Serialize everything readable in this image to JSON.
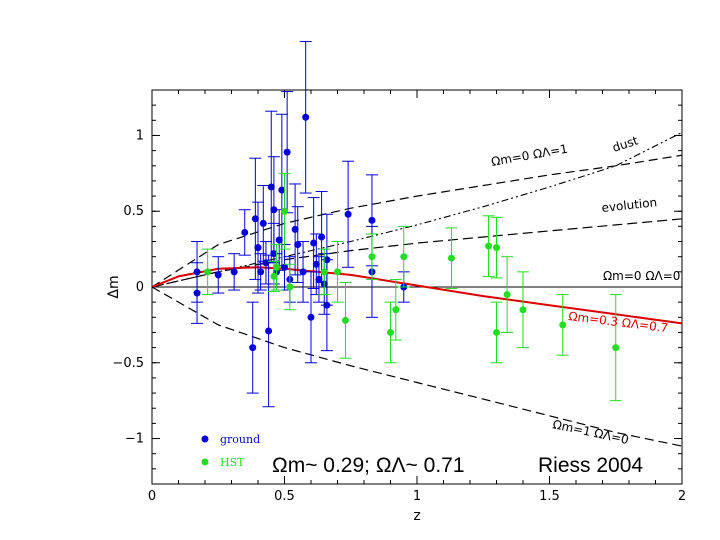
{
  "chart_data": {
    "type": "scatter",
    "xlabel": "z",
    "ylabel": "Δm",
    "xlim": [
      0,
      2
    ],
    "ylim": [
      -1.3,
      1.3
    ],
    "xticks": [
      "0",
      "0.5",
      "1",
      "1.5",
      "2"
    ],
    "yticks": [
      "1",
      "0.5",
      "0",
      "−0.5",
      "−1"
    ],
    "annotation_left": "Ωm~ 0.29; ΩΛ~ 0.71",
    "annotation_right": "Riess 2004",
    "colors": {
      "ground": "#0000dd",
      "hst": "#22dd22",
      "model": "#dd0000"
    },
    "curves": [
      {
        "label": "Ωm=0  ΩΛ=1",
        "x": [
          0,
          0.25,
          0.5,
          0.75,
          1,
          1.25,
          1.5,
          1.75,
          2
        ],
        "y": [
          0,
          0.28,
          0.42,
          0.52,
          0.6,
          0.67,
          0.74,
          0.8,
          0.87
        ]
      },
      {
        "label": "dust",
        "x": [
          0,
          0.25,
          0.5,
          0.75,
          1,
          1.25,
          1.5,
          1.75,
          2
        ],
        "y": [
          0,
          0.1,
          0.2,
          0.3,
          0.41,
          0.53,
          0.66,
          0.8,
          1.02
        ]
      },
      {
        "label": "evolution",
        "x": [
          0,
          0.25,
          0.5,
          0.75,
          1,
          1.25,
          1.5,
          1.75,
          2
        ],
        "y": [
          0,
          0.1,
          0.18,
          0.24,
          0.29,
          0.33,
          0.37,
          0.41,
          0.45
        ]
      },
      {
        "label": "Ωm=0  ΩΛ=0",
        "x": [
          0,
          2
        ],
        "y": [
          0,
          0
        ]
      },
      {
        "label": "Ωm=0.3  ΩΛ=0.7",
        "x": [
          0,
          0.1,
          0.25,
          0.4,
          0.5,
          0.75,
          1,
          1.25,
          1.5,
          1.75,
          2
        ],
        "y": [
          0,
          0.07,
          0.12,
          0.13,
          0.12,
          0.08,
          0.01,
          -0.06,
          -0.12,
          -0.18,
          -0.24
        ]
      },
      {
        "label": "Ωm=1  ΩΛ=0",
        "x": [
          0,
          0.25,
          0.5,
          0.75,
          1,
          1.25,
          1.5,
          1.75,
          2
        ],
        "y": [
          0,
          -0.25,
          -0.4,
          -0.52,
          -0.63,
          -0.74,
          -0.85,
          -0.96,
          -1.05
        ]
      }
    ],
    "series": [
      {
        "name": "ground",
        "points": [
          [
            0.17,
            0.1,
            0.2
          ],
          [
            0.17,
            -0.04,
            0.2
          ],
          [
            0.25,
            0.08,
            0.12
          ],
          [
            0.31,
            0.1,
            0.12
          ],
          [
            0.35,
            0.36,
            0.15
          ],
          [
            0.38,
            -0.4,
            0.3
          ],
          [
            0.39,
            0.45,
            0.4
          ],
          [
            0.4,
            0.26,
            0.3
          ],
          [
            0.41,
            0.1,
            0.12
          ],
          [
            0.42,
            0.42,
            0.25
          ],
          [
            0.43,
            0.16,
            0.14
          ],
          [
            0.44,
            -0.29,
            0.5
          ],
          [
            0.45,
            0.66,
            0.5
          ],
          [
            0.46,
            0.51,
            0.35
          ],
          [
            0.46,
            0.22,
            0.2
          ],
          [
            0.47,
            0.1,
            0.12
          ],
          [
            0.48,
            0.31,
            0.2
          ],
          [
            0.49,
            0.64,
            0.5
          ],
          [
            0.5,
            0.13,
            0.15
          ],
          [
            0.51,
            0.89,
            0.4
          ],
          [
            0.52,
            0.05,
            0.15
          ],
          [
            0.54,
            0.38,
            0.3
          ],
          [
            0.55,
            0.28,
            0.25
          ],
          [
            0.57,
            0.1,
            0.2
          ],
          [
            0.58,
            1.12,
            0.5
          ],
          [
            0.6,
            -0.2,
            0.3
          ],
          [
            0.61,
            0.29,
            0.3
          ],
          [
            0.62,
            0.15,
            0.2
          ],
          [
            0.63,
            0.05,
            0.15
          ],
          [
            0.64,
            0.33,
            0.3
          ],
          [
            0.65,
            0.02,
            0.2
          ],
          [
            0.66,
            0.18,
            0.3
          ],
          [
            0.66,
            -0.12,
            0.3
          ],
          [
            0.74,
            0.48,
            0.35
          ],
          [
            0.83,
            0.44,
            0.3
          ],
          [
            0.83,
            0.1,
            0.3
          ],
          [
            0.95,
            0.0,
            0.1
          ]
        ]
      },
      {
        "name": "HST",
        "points": [
          [
            0.21,
            0.1,
            0.15
          ],
          [
            0.46,
            0.07,
            0.1
          ],
          [
            0.47,
            0.13,
            0.15
          ],
          [
            0.5,
            0.5,
            0.25
          ],
          [
            0.52,
            0.0,
            0.15
          ],
          [
            0.65,
            0.1,
            0.15
          ],
          [
            0.7,
            0.1,
            0.2
          ],
          [
            0.73,
            -0.22,
            0.25
          ],
          [
            0.83,
            0.2,
            0.15
          ],
          [
            0.9,
            -0.3,
            0.2
          ],
          [
            0.92,
            -0.15,
            0.2
          ],
          [
            0.95,
            0.2,
            0.2
          ],
          [
            1.13,
            0.19,
            0.2
          ],
          [
            1.27,
            0.27,
            0.2
          ],
          [
            1.3,
            0.26,
            0.2
          ],
          [
            1.3,
            -0.3,
            0.2
          ],
          [
            1.34,
            -0.05,
            0.25
          ],
          [
            1.4,
            -0.15,
            0.25
          ],
          [
            1.55,
            -0.25,
            0.2
          ],
          [
            1.75,
            -0.4,
            0.35
          ]
        ]
      }
    ]
  }
}
